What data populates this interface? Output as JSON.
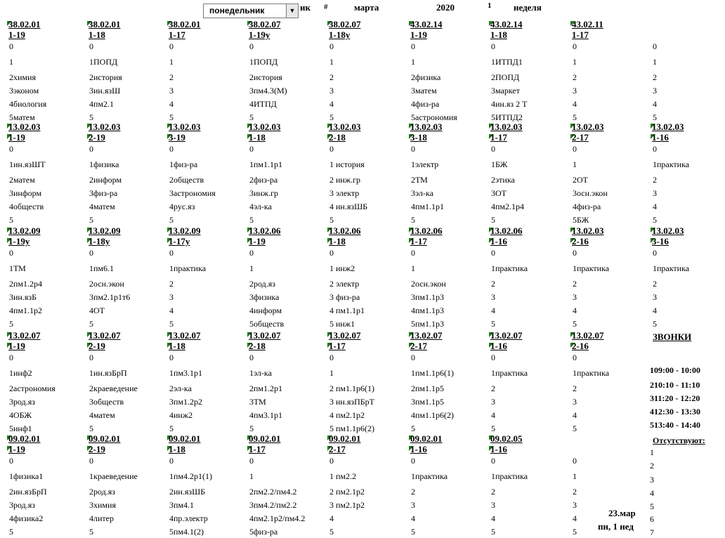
{
  "header": {
    "day_select": "понедельник",
    "ik": "ик",
    "hash": "#",
    "month": "марта",
    "year": "2020",
    "week_num": "1",
    "week_label": "неделя"
  },
  "rows": [
    [
      {
        "code": "38.02.01",
        "group": "1-19",
        "zero": "0",
        "lessons": [
          "1",
          "2химия",
          "3эконом",
          "4биология",
          "5матем"
        ]
      },
      {
        "code": "38.02.01",
        "group": "1-18",
        "zero": "0",
        "lessons": [
          "1ПОПД",
          "2история",
          "3ин.язШ",
          "4пм2.1",
          "5"
        ]
      },
      {
        "code": "38.02.01",
        "group": "1-17",
        "zero": "0",
        "lessons": [
          "1",
          "2",
          "3",
          "4",
          "5"
        ]
      },
      {
        "code": "38.02.07",
        "group": "1-19у",
        "zero": "0",
        "lessons": [
          "1ПОПД",
          "2история",
          "3пм4.3(М)",
          "4ИТПД",
          "5"
        ]
      },
      {
        "code": "38.02.07",
        "group": "1-18у",
        "zero": "0",
        "lessons": [
          "1",
          "2",
          "3",
          "4",
          "5"
        ]
      },
      {
        "code": "43.02.14",
        "group": "1-19",
        "zero": "0",
        "lessons": [
          "1",
          "2физика",
          "3матем",
          "4физ-ра",
          "5астрономия"
        ]
      },
      {
        "code": "43.02.14",
        "group": "1-18",
        "zero": "0",
        "lessons": [
          "1ИТПД1",
          "2ПОПД",
          "3маркет",
          "4ин.яз 2 Т",
          "5ИТПД2"
        ]
      },
      {
        "code": "43.02.11",
        "group": "1-17",
        "zero": "0",
        "lessons": [
          "1",
          "2",
          "3",
          "4",
          "5"
        ]
      },
      {
        "code": "",
        "group": "",
        "zero": "0",
        "lessons": [
          "1",
          "2",
          "3",
          "4",
          "5"
        ]
      }
    ],
    [
      {
        "code": "13.02.03",
        "group": "1-19",
        "zero": "0",
        "lessons": [
          "1ин.язШТ",
          "2матем",
          "3информ",
          "4обществ",
          "5"
        ]
      },
      {
        "code": "13.02.03",
        "group": "2-19",
        "zero": "0",
        "lessons": [
          "1физика",
          "2информ",
          "3физ-ра",
          "4матем",
          "5"
        ]
      },
      {
        "code": "13.02.03",
        "group": "3-19",
        "zero": "0",
        "lessons": [
          "1физ-ра",
          "2обществ",
          "3астрономия",
          "4рус.яз",
          "5"
        ]
      },
      {
        "code": "13.02.03",
        "group": "1-18",
        "zero": "0",
        "lessons": [
          "1пм1.1р1",
          "2физ-ра",
          "3инж.гр",
          "4эл-ка",
          "5"
        ]
      },
      {
        "code": "13.02.03",
        "group": "2-18",
        "zero": "0",
        "lessons": [
          "1 история",
          "2 инж.гр",
          "3 электр",
          "4 ин.язШБ",
          "5"
        ]
      },
      {
        "code": "13.02.03",
        "group": "3-18",
        "zero": "0",
        "lessons": [
          "1электр",
          "2ТМ",
          "3эл-ка",
          "4пм1.1р1",
          "5"
        ]
      },
      {
        "code": "13.02.03",
        "group": "1-17",
        "zero": "0",
        "lessons": [
          "1БЖ",
          "2этика",
          "3ОТ",
          "4пм2.1р4",
          "5"
        ]
      },
      {
        "code": "13.02.03",
        "group": "2-17",
        "zero": "0",
        "lessons": [
          "1",
          "2ОТ",
          "3осн.экон",
          "4физ-ра",
          "5БЖ"
        ]
      },
      {
        "code": "13.02.03",
        "group": "1-16",
        "zero": "0",
        "lessons": [
          "1практика",
          "2",
          "3",
          "4",
          "5"
        ]
      }
    ],
    [
      {
        "code": "13.02.09",
        "group": "1-19у",
        "zero": "0",
        "lessons": [
          "1ТМ",
          "2пм1.2р4",
          "3ин.язБ",
          "4пм1.1р2",
          "5"
        ]
      },
      {
        "code": "13.02.09",
        "group": "1-18у",
        "zero": "0",
        "lessons": [
          "1пм6.1",
          "2осн.экон",
          "3пм2.1р1т6",
          "4ОТ",
          "5"
        ]
      },
      {
        "code": "13.02.09",
        "group": "1-17у",
        "zero": "0",
        "lessons": [
          "1практика",
          "2",
          "3",
          "4",
          "5"
        ]
      },
      {
        "code": "13.02.06",
        "group": "1-19",
        "zero": "0",
        "lessons": [
          "1",
          "2род.яз",
          "3физика",
          "4информ",
          "5обществ"
        ]
      },
      {
        "code": "13.02.06",
        "group": "1-18",
        "zero": "0",
        "lessons": [
          "1 инж2",
          "2 электр",
          "3 физ-ра",
          "4 пм1.1р1",
          "5 инж1"
        ]
      },
      {
        "code": "13.02.06",
        "group": "1-17",
        "zero": "0",
        "lessons": [
          "1",
          "2осн.экон",
          "3пм1.1р3",
          "4пм1.1р3",
          "5пм1.1р3"
        ]
      },
      {
        "code": "13.02.06",
        "group": "1-16",
        "zero": "0",
        "lessons": [
          "1практика",
          "2",
          "3",
          "4",
          "5"
        ]
      },
      {
        "code": "13.02.03",
        "group": "2-16",
        "zero": "0",
        "lessons": [
          "1практика",
          "2",
          "3",
          "4",
          "5"
        ]
      },
      {
        "code": "13.02.03",
        "group": "3-16",
        "zero": "0",
        "lessons": [
          "1практика",
          "2",
          "3",
          "4",
          "5"
        ]
      }
    ],
    [
      {
        "code": "13.02.07",
        "group": "1-19",
        "zero": "0",
        "lessons": [
          "1инф2",
          "2астрономия",
          "3род.яз",
          "4ОБЖ",
          "5инф1"
        ]
      },
      {
        "code": "13.02.07",
        "group": "2-19",
        "zero": "0",
        "lessons": [
          "1ин.язБрП",
          "2краеведение",
          "3обществ",
          "4матем",
          "5"
        ]
      },
      {
        "code": "13.02.07",
        "group": "1-18",
        "zero": "0",
        "lessons": [
          "1пм3.1р1",
          "2эл-ка",
          "3пм1.2р2",
          "4инж2",
          "5"
        ]
      },
      {
        "code": "13.02.07",
        "group": "2-18",
        "zero": "0",
        "lessons": [
          "1эл-ка",
          "2пм1.2р1",
          "3ТМ",
          "4пм3.1р1",
          "5"
        ]
      },
      {
        "code": "13.02.07",
        "group": "1-17",
        "zero": "0",
        "lessons": [
          "1",
          "2 пм1.1р6(1)",
          "3 ин.язПБрТ",
          "4 пм2.1р2",
          "5 пм1.1р6(2)"
        ]
      },
      {
        "code": "13.02.07",
        "group": "2-17",
        "zero": "0",
        "lessons": [
          "1пм1.1р6(1)",
          "2пм1.1р5",
          "3пм1.1р5",
          "4пм1.1р6(2)",
          "5"
        ]
      },
      {
        "code": "13.02.07",
        "group": "1-16",
        "zero": "0",
        "lessons": [
          "1практика",
          "2",
          "3",
          "4",
          "5"
        ]
      },
      {
        "code": "13.02.07",
        "group": "2-16",
        "zero": "0",
        "lessons": [
          "1практика",
          "2",
          "3",
          "4",
          "5"
        ]
      }
    ],
    [
      {
        "code": "09.02.01",
        "group": "1-19",
        "zero": "0",
        "lessons": [
          "1физика1",
          "2ин.язБрП",
          "3род.яз",
          "4физика2",
          "5"
        ]
      },
      {
        "code": "09.02.01",
        "group": "2-19",
        "zero": "0",
        "lessons": [
          "1краеведение",
          "2род.яз",
          "3химия",
          "4литер",
          "5"
        ]
      },
      {
        "code": "09.02.01",
        "group": "1-18",
        "zero": "0",
        "lessons": [
          "1пм4.2р1(1)",
          "2ин.язШБ",
          "3пм4.1",
          "4пр.электр",
          "5пм4.1(2)"
        ]
      },
      {
        "code": "09.02.01",
        "group": "1-17",
        "zero": "0",
        "lessons": [
          "1",
          "2пм2.2/пм4.2",
          "3пм4.2/пм2.2",
          "4пм2.1р2/пм4.2",
          "5физ-ра"
        ]
      },
      {
        "code": "09.02.01",
        "group": "2-17",
        "zero": "0",
        "lessons": [
          "1 пм2.2",
          "2 пм2.1р2",
          "3 пм2.1р2",
          "4",
          "5"
        ]
      },
      {
        "code": "09.02.01",
        "group": "1-16",
        "zero": "0",
        "lessons": [
          "1практика",
          "2",
          "3",
          "4",
          "5"
        ]
      },
      {
        "code": "09.02.05",
        "group": "1-16",
        "zero": "0",
        "lessons": [
          "1практика",
          "2",
          "3",
          "4",
          "5"
        ]
      },
      {
        "code": "",
        "group": "",
        "zero": "0",
        "lessons": [
          "1",
          "2",
          "3",
          "4",
          "5"
        ]
      }
    ]
  ],
  "zvonki": {
    "title": "ЗВОНКИ",
    "items": [
      "109:00 - 10:00",
      "210:10 - 11:10",
      "311:20 - 12:20",
      "412:30 - 13:30",
      "513:40 - 14:40"
    ]
  },
  "absent": {
    "title": "Отсутствуют:",
    "nums": [
      "1",
      "2",
      "3",
      "4",
      "5",
      "6",
      "7"
    ]
  },
  "date": {
    "line1": "23.мар",
    "line2": "пн, 1 нед"
  }
}
